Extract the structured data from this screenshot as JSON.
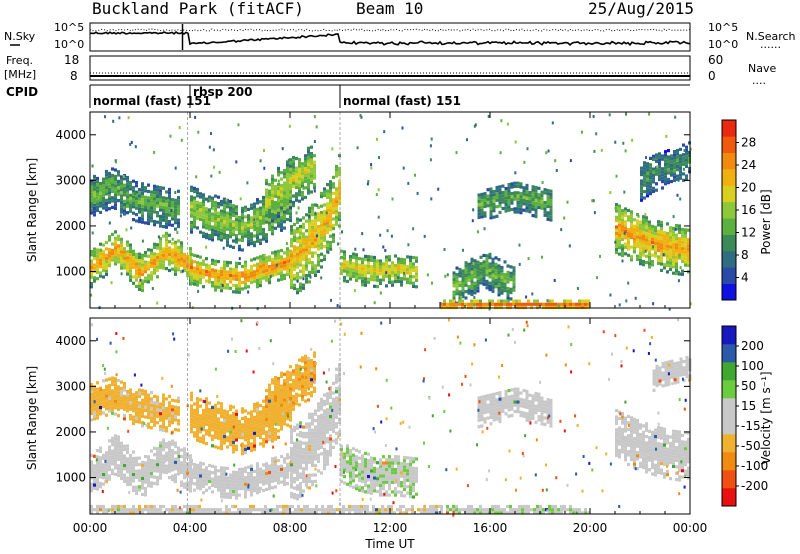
{
  "header": {
    "station": "Buckland Park (fitACF)",
    "beam": "Beam 10",
    "date": "25/Aug/2015"
  },
  "status_panel": {
    "nsky_label": "N.Sky",
    "nsky_ticks": [
      "10^5",
      "10^0"
    ],
    "nsearch_label": "N.Search",
    "nsearch_ticks": [
      "10^5",
      "10^0"
    ],
    "freq_label": "Freq.",
    "freq_unit": "[MHz]",
    "freq_ticks": [
      "18",
      "8"
    ],
    "nave_label": "Nave",
    "nave_ticks": [
      "60",
      "0"
    ],
    "cpid_label": "CPID",
    "cpid_segments": [
      {
        "label": "normal (fast) 151",
        "start_h": 0,
        "end_h": 4
      },
      {
        "label": "rbsp 200",
        "start_h": 4,
        "end_h": 10
      },
      {
        "label": "normal (fast) 151",
        "start_h": 10,
        "end_h": 24
      }
    ]
  },
  "chart_data": [
    {
      "type": "heatmap",
      "quantity": "power",
      "ylabel": "Slant Range [km]",
      "yticks": [
        "1000",
        "2000",
        "3000",
        "4000"
      ],
      "ylim": [
        200,
        4500
      ],
      "xlim": [
        0,
        24
      ],
      "colorbar": {
        "label": "Power [dB]",
        "ticks": [
          "4",
          "8",
          "12",
          "16",
          "20",
          "24",
          "28"
        ],
        "range": [
          0,
          32
        ],
        "colors": [
          "#1010e0",
          "#2a4aa8",
          "#2e6e80",
          "#3c8a58",
          "#5cb040",
          "#8ec83a",
          "#d8d020",
          "#f0b010",
          "#f08a10",
          "#f05a10",
          "#e82810"
        ]
      },
      "bands": [
        {
          "t0": 0.0,
          "t1": 4.0,
          "r0": 850,
          "r1": 1650,
          "c": [
            1100,
            1550,
            1000,
            1500,
            1150
          ],
          "v": 24
        },
        {
          "t0": 4.0,
          "t1": 8.0,
          "r0": 800,
          "r1": 1450,
          "c": [
            1100,
            950,
            900,
            1100,
            1250
          ],
          "v": 25
        },
        {
          "t0": 8.0,
          "t1": 10.0,
          "r0": 1150,
          "r1": 2800,
          "c": [
            1300,
            1500,
            1800,
            2200,
            2900
          ],
          "v": 22
        },
        {
          "t0": 0.0,
          "t1": 3.5,
          "r0": 2300,
          "r1": 3200,
          "c": [
            2700,
            2900,
            2600,
            2500,
            2400
          ],
          "v": 13
        },
        {
          "t0": 4.0,
          "t1": 8.0,
          "r0": 1800,
          "r1": 2800,
          "c": [
            2400,
            2200,
            2000,
            2200,
            2600
          ],
          "v": 16
        },
        {
          "t0": 7.0,
          "t1": 9.0,
          "r0": 2200,
          "r1": 3300,
          "c": [
            2600,
            2800,
            3000,
            3200,
            3300
          ],
          "v": 18
        },
        {
          "t0": 10.0,
          "t1": 13.0,
          "r0": 800,
          "r1": 1500,
          "c": [
            1200,
            1100,
            1050,
            1100,
            1050
          ],
          "v": 20
        },
        {
          "t0": 14.5,
          "t1": 17.0,
          "r0": 600,
          "r1": 1400,
          "c": [
            700,
            900,
            1100,
            900,
            800
          ],
          "v": 14
        },
        {
          "t0": 15.5,
          "t1": 18.5,
          "r0": 2200,
          "r1": 2900,
          "c": [
            2500,
            2600,
            2700,
            2600,
            2500
          ],
          "v": 13
        },
        {
          "t0": 21.0,
          "t1": 24.0,
          "r0": 1200,
          "r1": 2300,
          "c": [
            2000,
            1800,
            1650,
            1550,
            1500
          ],
          "v": 24
        },
        {
          "t0": 22.0,
          "t1": 24.0,
          "r0": 2800,
          "r1": 3600,
          "c": [
            3000,
            3200,
            3300,
            3400,
            3500
          ],
          "v": 11
        },
        {
          "t0": 14.0,
          "t1": 20.0,
          "r0": 200,
          "r1": 450,
          "c": [
            300,
            300,
            300,
            300,
            300
          ],
          "v": 28
        }
      ]
    },
    {
      "type": "heatmap",
      "quantity": "velocity",
      "ylabel": "Slant Range [km]",
      "yticks": [
        "1000",
        "2000",
        "3000",
        "4000"
      ],
      "ylim": [
        200,
        4500
      ],
      "xlim": [
        0,
        24
      ],
      "xticks": [
        "00:00",
        "04:00",
        "08:00",
        "12:00",
        "16:00",
        "20:00",
        "00:00"
      ],
      "xlabel": "Time UT",
      "colorbar": {
        "label": "Velocity [m s⁻¹]",
        "ticks": [
          "200",
          "100",
          "50",
          "15",
          "-15",
          "-50",
          "-100",
          "-200"
        ],
        "range": [
          -250,
          250
        ],
        "colors": [
          "#e81010",
          "#f05010",
          "#f08a10",
          "#f0b030",
          "#c8c8c8",
          "#c8c8c8",
          "#6ccc40",
          "#40a830",
          "#2a5aa8",
          "#1818c0"
        ]
      },
      "bands": [
        {
          "t0": 0.0,
          "t1": 4.0,
          "r0": 850,
          "r1": 1700,
          "c": [
            1100,
            1550,
            1000,
            1500,
            1150
          ],
          "v": 0
        },
        {
          "t0": 4.0,
          "t1": 8.0,
          "r0": 800,
          "r1": 1450,
          "c": [
            1100,
            950,
            900,
            1100,
            1250
          ],
          "v": 0
        },
        {
          "t0": 8.0,
          "t1": 10.0,
          "r0": 1150,
          "r1": 2800,
          "c": [
            1300,
            1500,
            1800,
            2200,
            2900
          ],
          "v": 0
        },
        {
          "t0": 0.0,
          "t1": 3.5,
          "r0": 2300,
          "r1": 3100,
          "c": [
            2700,
            2850,
            2600,
            2500,
            2400
          ],
          "v": -60
        },
        {
          "t0": 4.0,
          "t1": 8.0,
          "r0": 1800,
          "r1": 2800,
          "c": [
            2400,
            2200,
            2050,
            2250,
            2600
          ],
          "v": -80
        },
        {
          "t0": 7.0,
          "t1": 9.0,
          "r0": 2300,
          "r1": 3300,
          "c": [
            2600,
            2800,
            3000,
            3200,
            3300
          ],
          "v": -90
        },
        {
          "t0": 10.0,
          "t1": 13.0,
          "r0": 800,
          "r1": 1700,
          "c": [
            1400,
            1200,
            1100,
            1100,
            1050
          ],
          "v": 45
        },
        {
          "t0": 15.5,
          "t1": 18.5,
          "r0": 2200,
          "r1": 2900,
          "c": [
            2500,
            2600,
            2700,
            2600,
            2500
          ],
          "v": 0
        },
        {
          "t0": 21.0,
          "t1": 24.0,
          "r0": 1200,
          "r1": 2300,
          "c": [
            2000,
            1800,
            1650,
            1550,
            1500
          ],
          "v": 0
        },
        {
          "t0": 22.5,
          "t1": 24.0,
          "r0": 3000,
          "r1": 3500,
          "c": [
            3200,
            3300,
            3350,
            3400,
            3450
          ],
          "v": 0
        },
        {
          "t0": 14.0,
          "t1": 20.0,
          "r0": 200,
          "r1": 420,
          "c": [
            300,
            300,
            300,
            300,
            300
          ],
          "v": 45
        },
        {
          "t0": 0.0,
          "t1": 14.0,
          "r0": 200,
          "r1": 420,
          "c": [
            300,
            300,
            300,
            300,
            300
          ],
          "v": -40
        }
      ]
    }
  ]
}
